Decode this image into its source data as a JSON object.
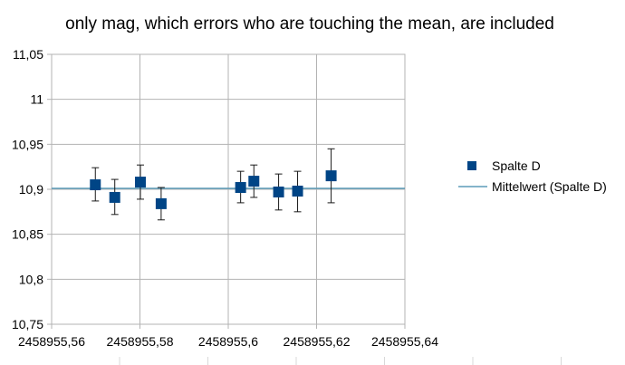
{
  "chart_data": {
    "type": "scatter",
    "title": "only mag, which errors who are touching the mean, are included",
    "xlabel": "",
    "ylabel": "",
    "xlim": [
      2458955.56,
      2458955.64
    ],
    "ylim": [
      10.75,
      11.05
    ],
    "grid": true,
    "legend_position": "right",
    "x_tick_labels": [
      "2458955,56",
      "2458955,58",
      "2458955,6",
      "2458955,62",
      "2458955,64"
    ],
    "x_ticks": [
      2458955.56,
      2458955.58,
      2458955.6,
      2458955.62,
      2458955.64
    ],
    "y_tick_labels": [
      "11,05",
      "11",
      "10,95",
      "10,9",
      "10,85",
      "10,8",
      "10,75"
    ],
    "y_ticks": [
      11.05,
      11.0,
      10.95,
      10.9,
      10.85,
      10.8,
      10.75
    ],
    "series": [
      {
        "name": "Spalte D",
        "color": "#004586",
        "points": [
          {
            "x": 2458955.5699,
            "y": 10.905,
            "err_low": 10.887,
            "err_high": 10.924
          },
          {
            "x": 2458955.5743,
            "y": 10.891,
            "err_low": 10.872,
            "err_high": 10.911
          },
          {
            "x": 2458955.5801,
            "y": 10.908,
            "err_low": 10.889,
            "err_high": 10.927
          },
          {
            "x": 2458955.5848,
            "y": 10.884,
            "err_low": 10.866,
            "err_high": 10.902
          },
          {
            "x": 2458955.6028,
            "y": 10.902,
            "err_low": 10.885,
            "err_high": 10.92
          },
          {
            "x": 2458955.6058,
            "y": 10.909,
            "err_low": 10.891,
            "err_high": 10.927
          },
          {
            "x": 2458955.6114,
            "y": 10.897,
            "err_low": 10.877,
            "err_high": 10.917
          },
          {
            "x": 2458955.6157,
            "y": 10.898,
            "err_low": 10.875,
            "err_high": 10.92
          },
          {
            "x": 2458955.6233,
            "y": 10.915,
            "err_low": 10.885,
            "err_high": 10.945
          }
        ]
      },
      {
        "name": "Mittelwert (Spalte D)",
        "color": "#5b9bb8",
        "mean": 10.901
      }
    ]
  }
}
